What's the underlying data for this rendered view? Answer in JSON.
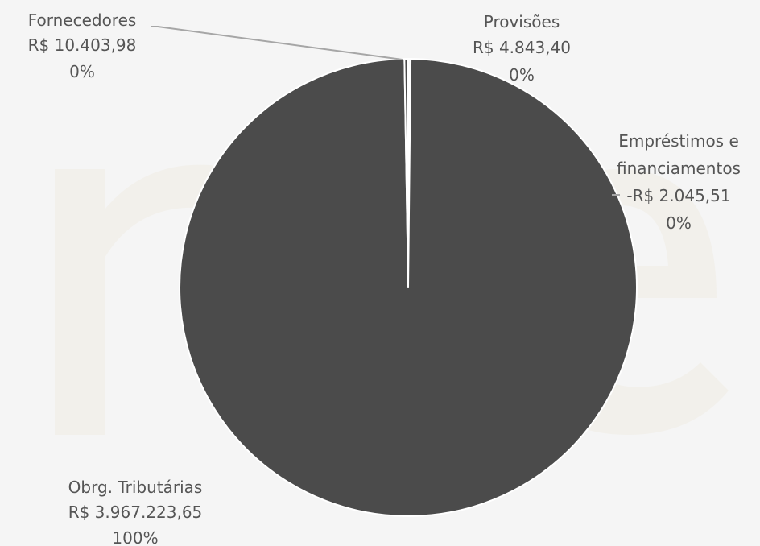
{
  "chart_data": {
    "type": "pie",
    "colors": {
      "background": "#f5f5f5",
      "slice": "#4b4b4b",
      "slice_border": "#ffffff",
      "label": "#555555",
      "leader": "#a6a6a6"
    },
    "slices": [
      {
        "name": "Provisões",
        "value_label": "R$ 4.843,40",
        "percent_label": "0%",
        "value": 4843.4
      },
      {
        "name": "Empréstimos e financiamentos",
        "name_lines": [
          "Empréstimos e",
          "financiamentos"
        ],
        "value_label": "-R$ 2.045,51",
        "percent_label": "0%",
        "value": -2045.51
      },
      {
        "name": "Obrg. Tributárias",
        "value_label": "R$ 3.967.223,65",
        "percent_label": "100%",
        "value": 3967223.65
      },
      {
        "name": "Fornecedores",
        "value_label": "R$ 10.403,98",
        "percent_label": "0%",
        "value": 10403.98
      }
    ]
  }
}
